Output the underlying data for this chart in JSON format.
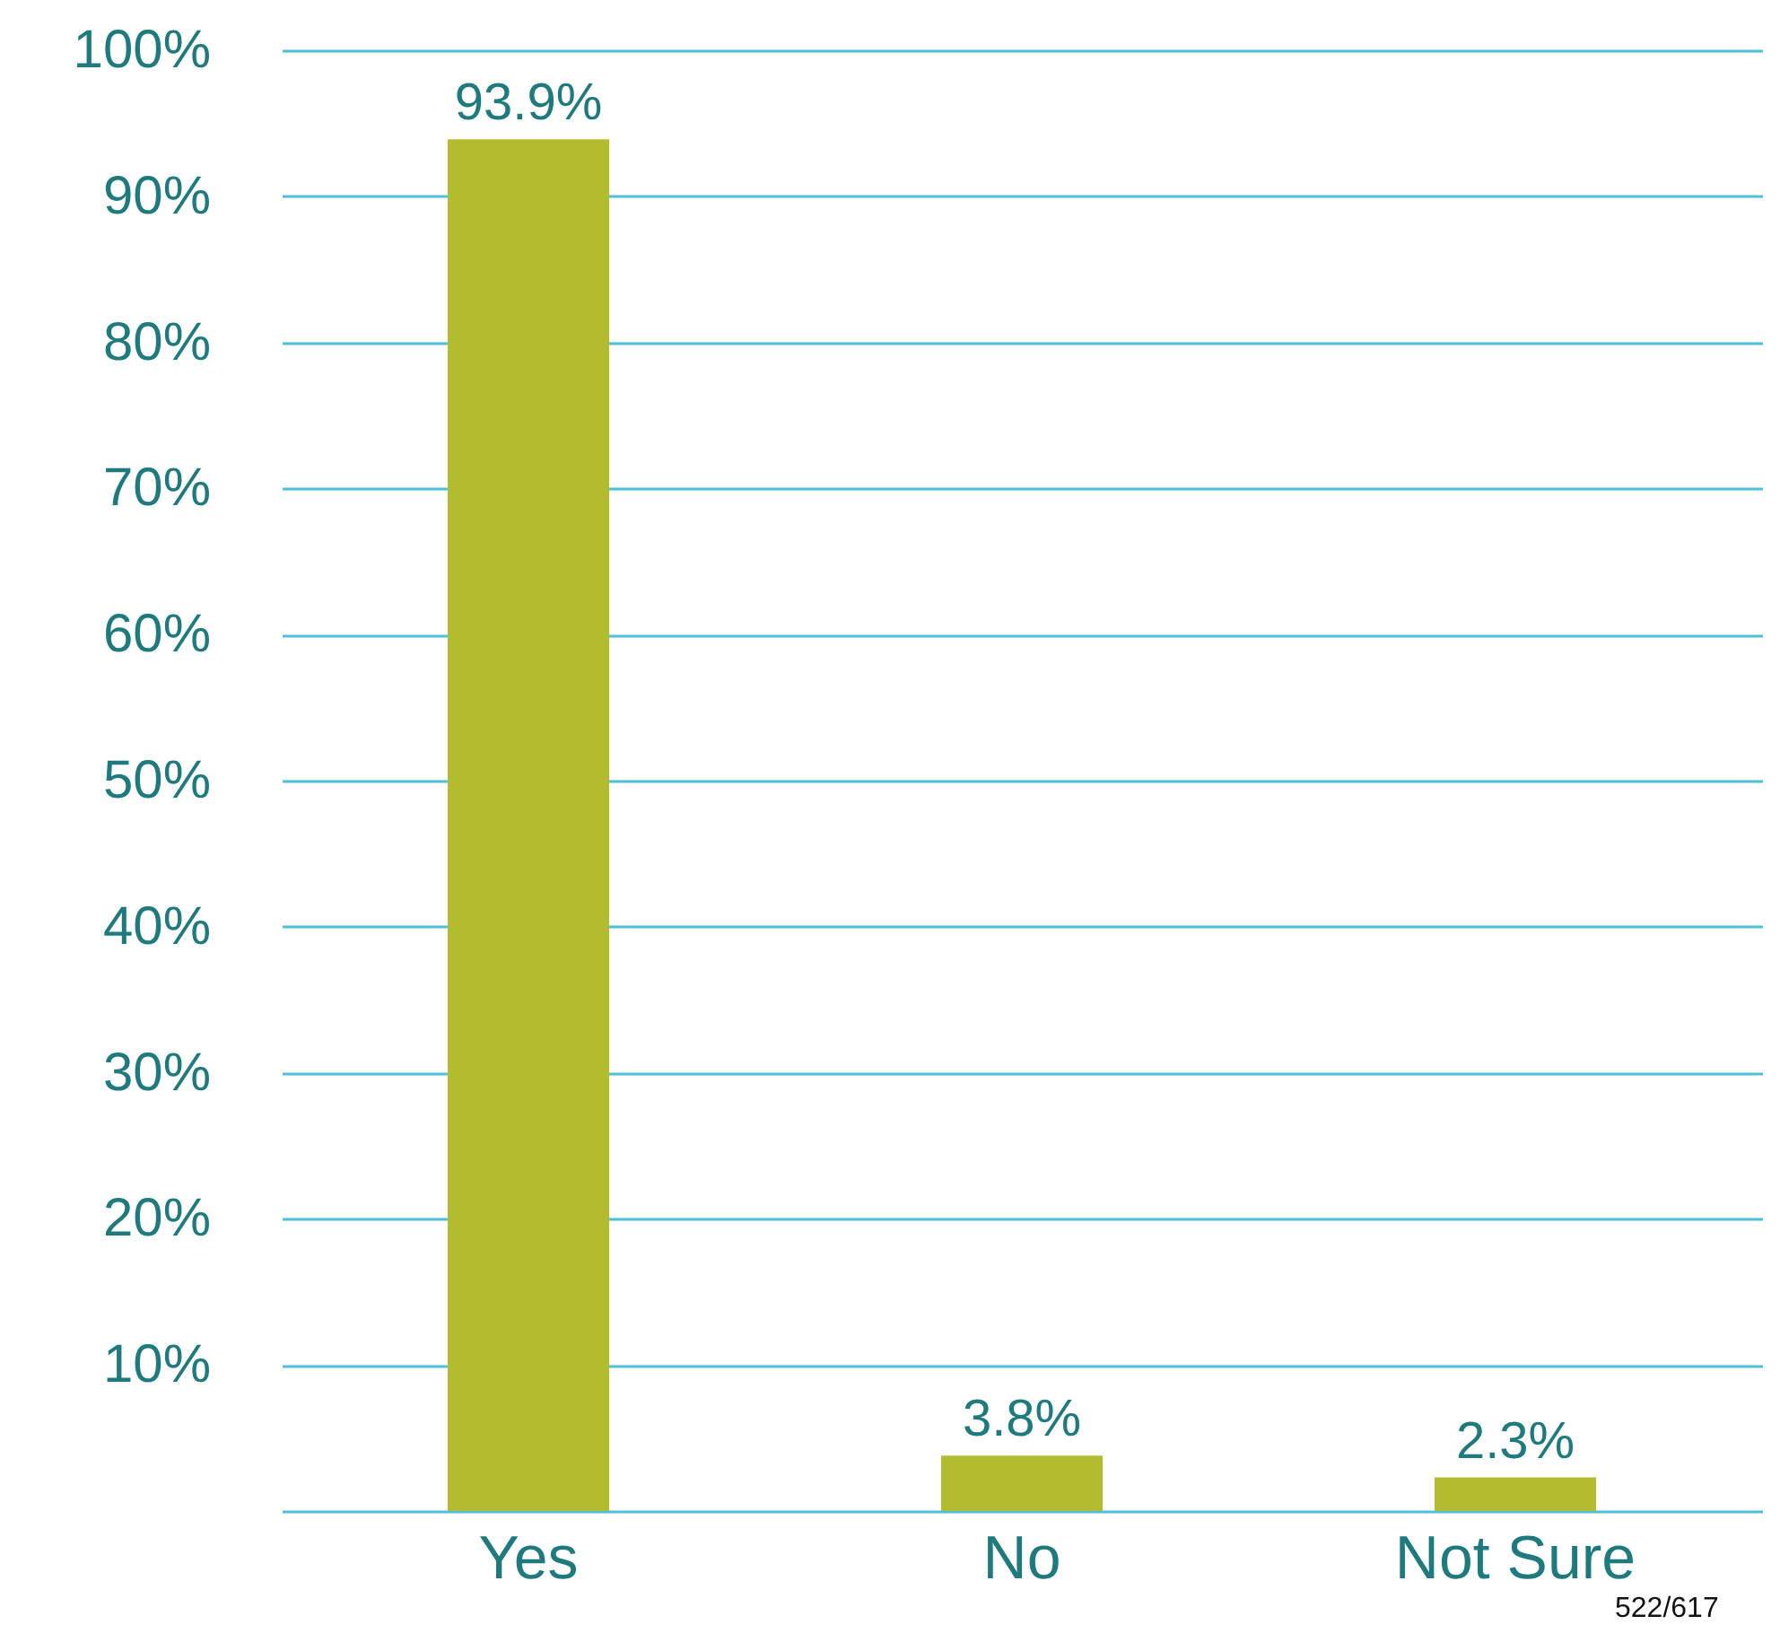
{
  "chart_data": {
    "type": "bar",
    "categories": [
      "Yes",
      "No",
      "Not Sure"
    ],
    "values": [
      93.9,
      3.8,
      2.3
    ],
    "value_labels": [
      "93.9%",
      "3.8%",
      "2.3%"
    ],
    "color": "#b3bc2f",
    "ylim": [
      0,
      100
    ],
    "yticks": [
      {
        "value": 0,
        "label": null
      },
      {
        "value": 10,
        "label": "10%"
      },
      {
        "value": 20,
        "label": "20%"
      },
      {
        "value": 30,
        "label": "30%"
      },
      {
        "value": 40,
        "label": "40%"
      },
      {
        "value": 50,
        "label": "50%"
      },
      {
        "value": 60,
        "label": "60%"
      },
      {
        "value": 70,
        "label": "70%"
      },
      {
        "value": 80,
        "label": "80%"
      },
      {
        "value": 90,
        "label": "90%"
      },
      {
        "value": 100,
        "label": "100%"
      }
    ],
    "grid": "y",
    "annotations": [
      "522/617"
    ]
  }
}
